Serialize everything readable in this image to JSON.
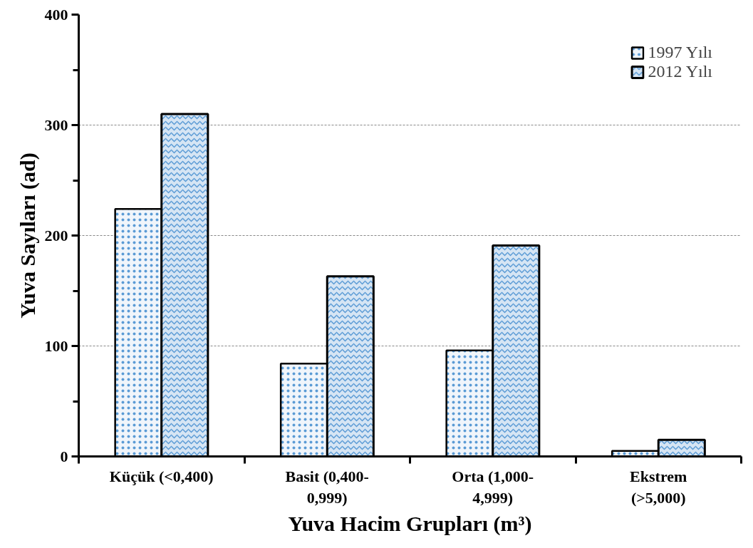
{
  "chart_data": {
    "type": "bar",
    "xlabel": "Yuva Hacim Grupları (m³)",
    "ylabel": "Yuva Sayıları (ad)",
    "categories": [
      "Küçük (<0,400)",
      "Basit (0,400-\n0,999)",
      "Orta (1,000-\n4,999)",
      "Ekstrem\n(>5,000)"
    ],
    "series": [
      {
        "name": "1997 Yılı",
        "color": "#f0f5fb",
        "values": [
          224,
          84,
          96,
          5
        ]
      },
      {
        "name": "2012 Yılı",
        "color": "#d6e5f4",
        "values": [
          310,
          163,
          191,
          15
        ]
      }
    ],
    "ylim": [
      0,
      400
    ],
    "yticks": [
      0,
      {
        "value": 50,
        "label": null
      },
      100,
      {
        "value": 150,
        "label": null
      },
      200,
      {
        "value": 250,
        "label": null
      },
      300,
      {
        "value": 350,
        "label": null
      },
      400
    ],
    "grid": "y",
    "legend": "top right"
  }
}
